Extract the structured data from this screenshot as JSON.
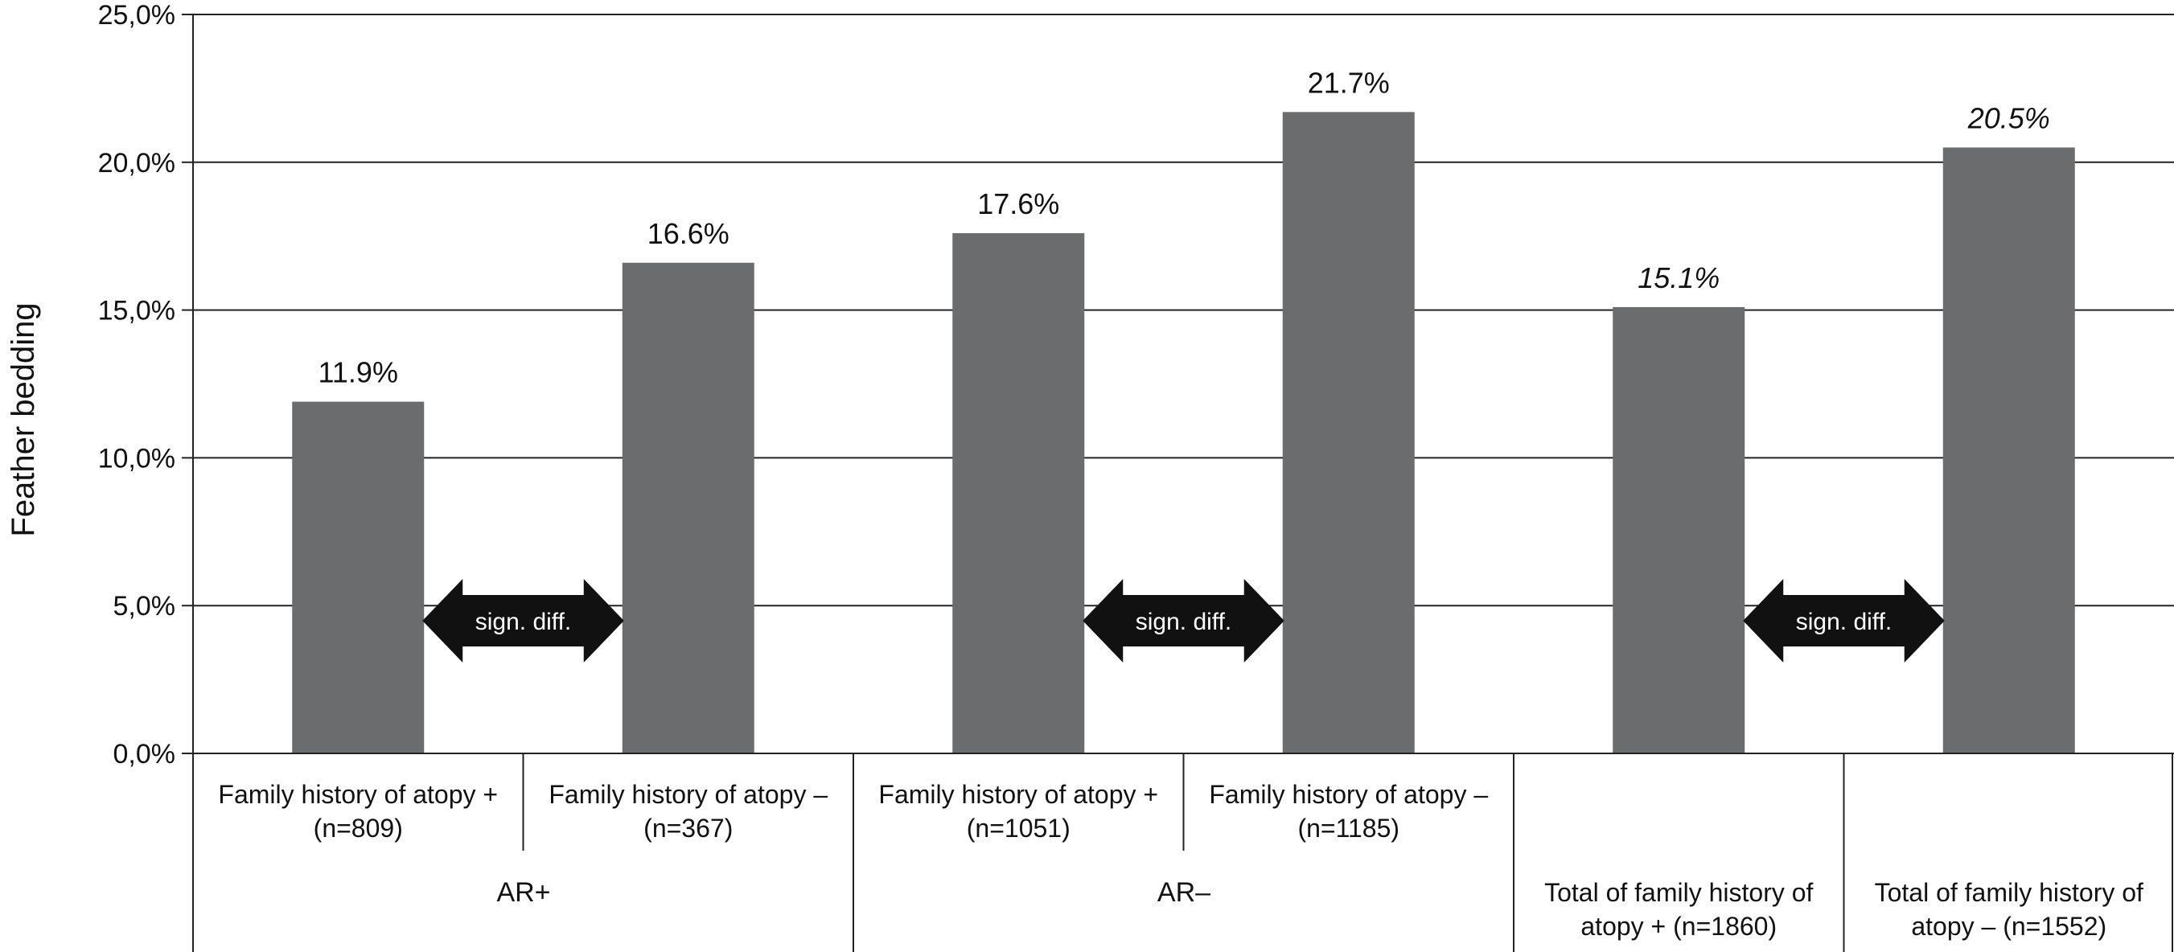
{
  "chart_data": {
    "type": "bar",
    "ylabel": "Feather bedding",
    "ylim": [
      0,
      25
    ],
    "yticks": [
      "0,0%",
      "5,0%",
      "10,0%",
      "15,0%",
      "20,0%",
      "25,0%"
    ],
    "grid": true,
    "bar_color": "#6b6c6e",
    "categories": [
      {
        "line1": "Family history of atopy +",
        "line2": "(n=809)"
      },
      {
        "line1": "Family history of atopy –",
        "line2": "(n=367)"
      },
      {
        "line1": "Family history of atopy +",
        "line2": "(n=1051)"
      },
      {
        "line1": "Family history of atopy –",
        "line2": "(n=1185)"
      },
      {
        "line1": "Total of family history of",
        "line2": "atopy + (n=1860)"
      },
      {
        "line1": "Total of family history of",
        "line2": "atopy – (n=1552)"
      }
    ],
    "values": [
      11.9,
      16.6,
      17.6,
      21.7,
      15.1,
      20.5
    ],
    "value_labels": [
      "11.9%",
      "16.6%",
      "17.6%",
      "21.7%",
      "15.1%",
      "20.5%"
    ],
    "value_label_italic": [
      false,
      false,
      false,
      false,
      true,
      true
    ],
    "groups": [
      "AR+",
      "AR–"
    ],
    "annotations": [
      "sign. diff.",
      "sign. diff.",
      "sign. diff."
    ]
  }
}
